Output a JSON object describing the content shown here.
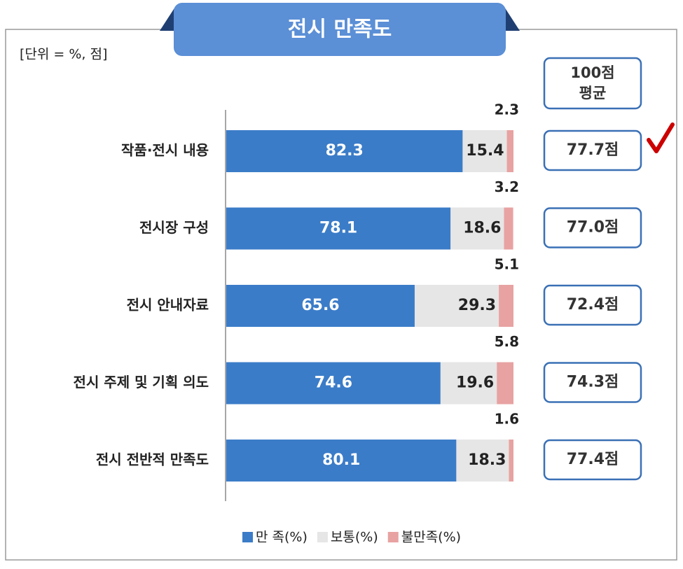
{
  "chart_data": {
    "type": "stacked_bar_horizontal",
    "title": "전시 만족도",
    "unit_note": "[단위 = %, 점]",
    "categories": [
      "작품·전시 내용",
      "전시장 구성",
      "전시 안내자료",
      "전시 주제 및 기획 의도",
      "전시 전반적 만족도"
    ],
    "series": [
      {
        "name": "만 족(%)",
        "color": "#3b7cc8",
        "values": [
          82.3,
          78.1,
          65.6,
          74.6,
          80.1
        ]
      },
      {
        "name": "보통(%)",
        "color": "#e6e6e6",
        "values": [
          15.4,
          18.6,
          29.3,
          19.6,
          18.3
        ]
      },
      {
        "name": "불만족(%)",
        "color": "#e8a2a2",
        "values": [
          2.3,
          3.2,
          5.1,
          5.8,
          1.6
        ]
      }
    ],
    "xlim": [
      0,
      100
    ],
    "score_header": [
      "100점",
      "평균"
    ],
    "scores": [
      "77.7점",
      "77.0점",
      "72.4점",
      "74.3점",
      "77.4점"
    ]
  }
}
